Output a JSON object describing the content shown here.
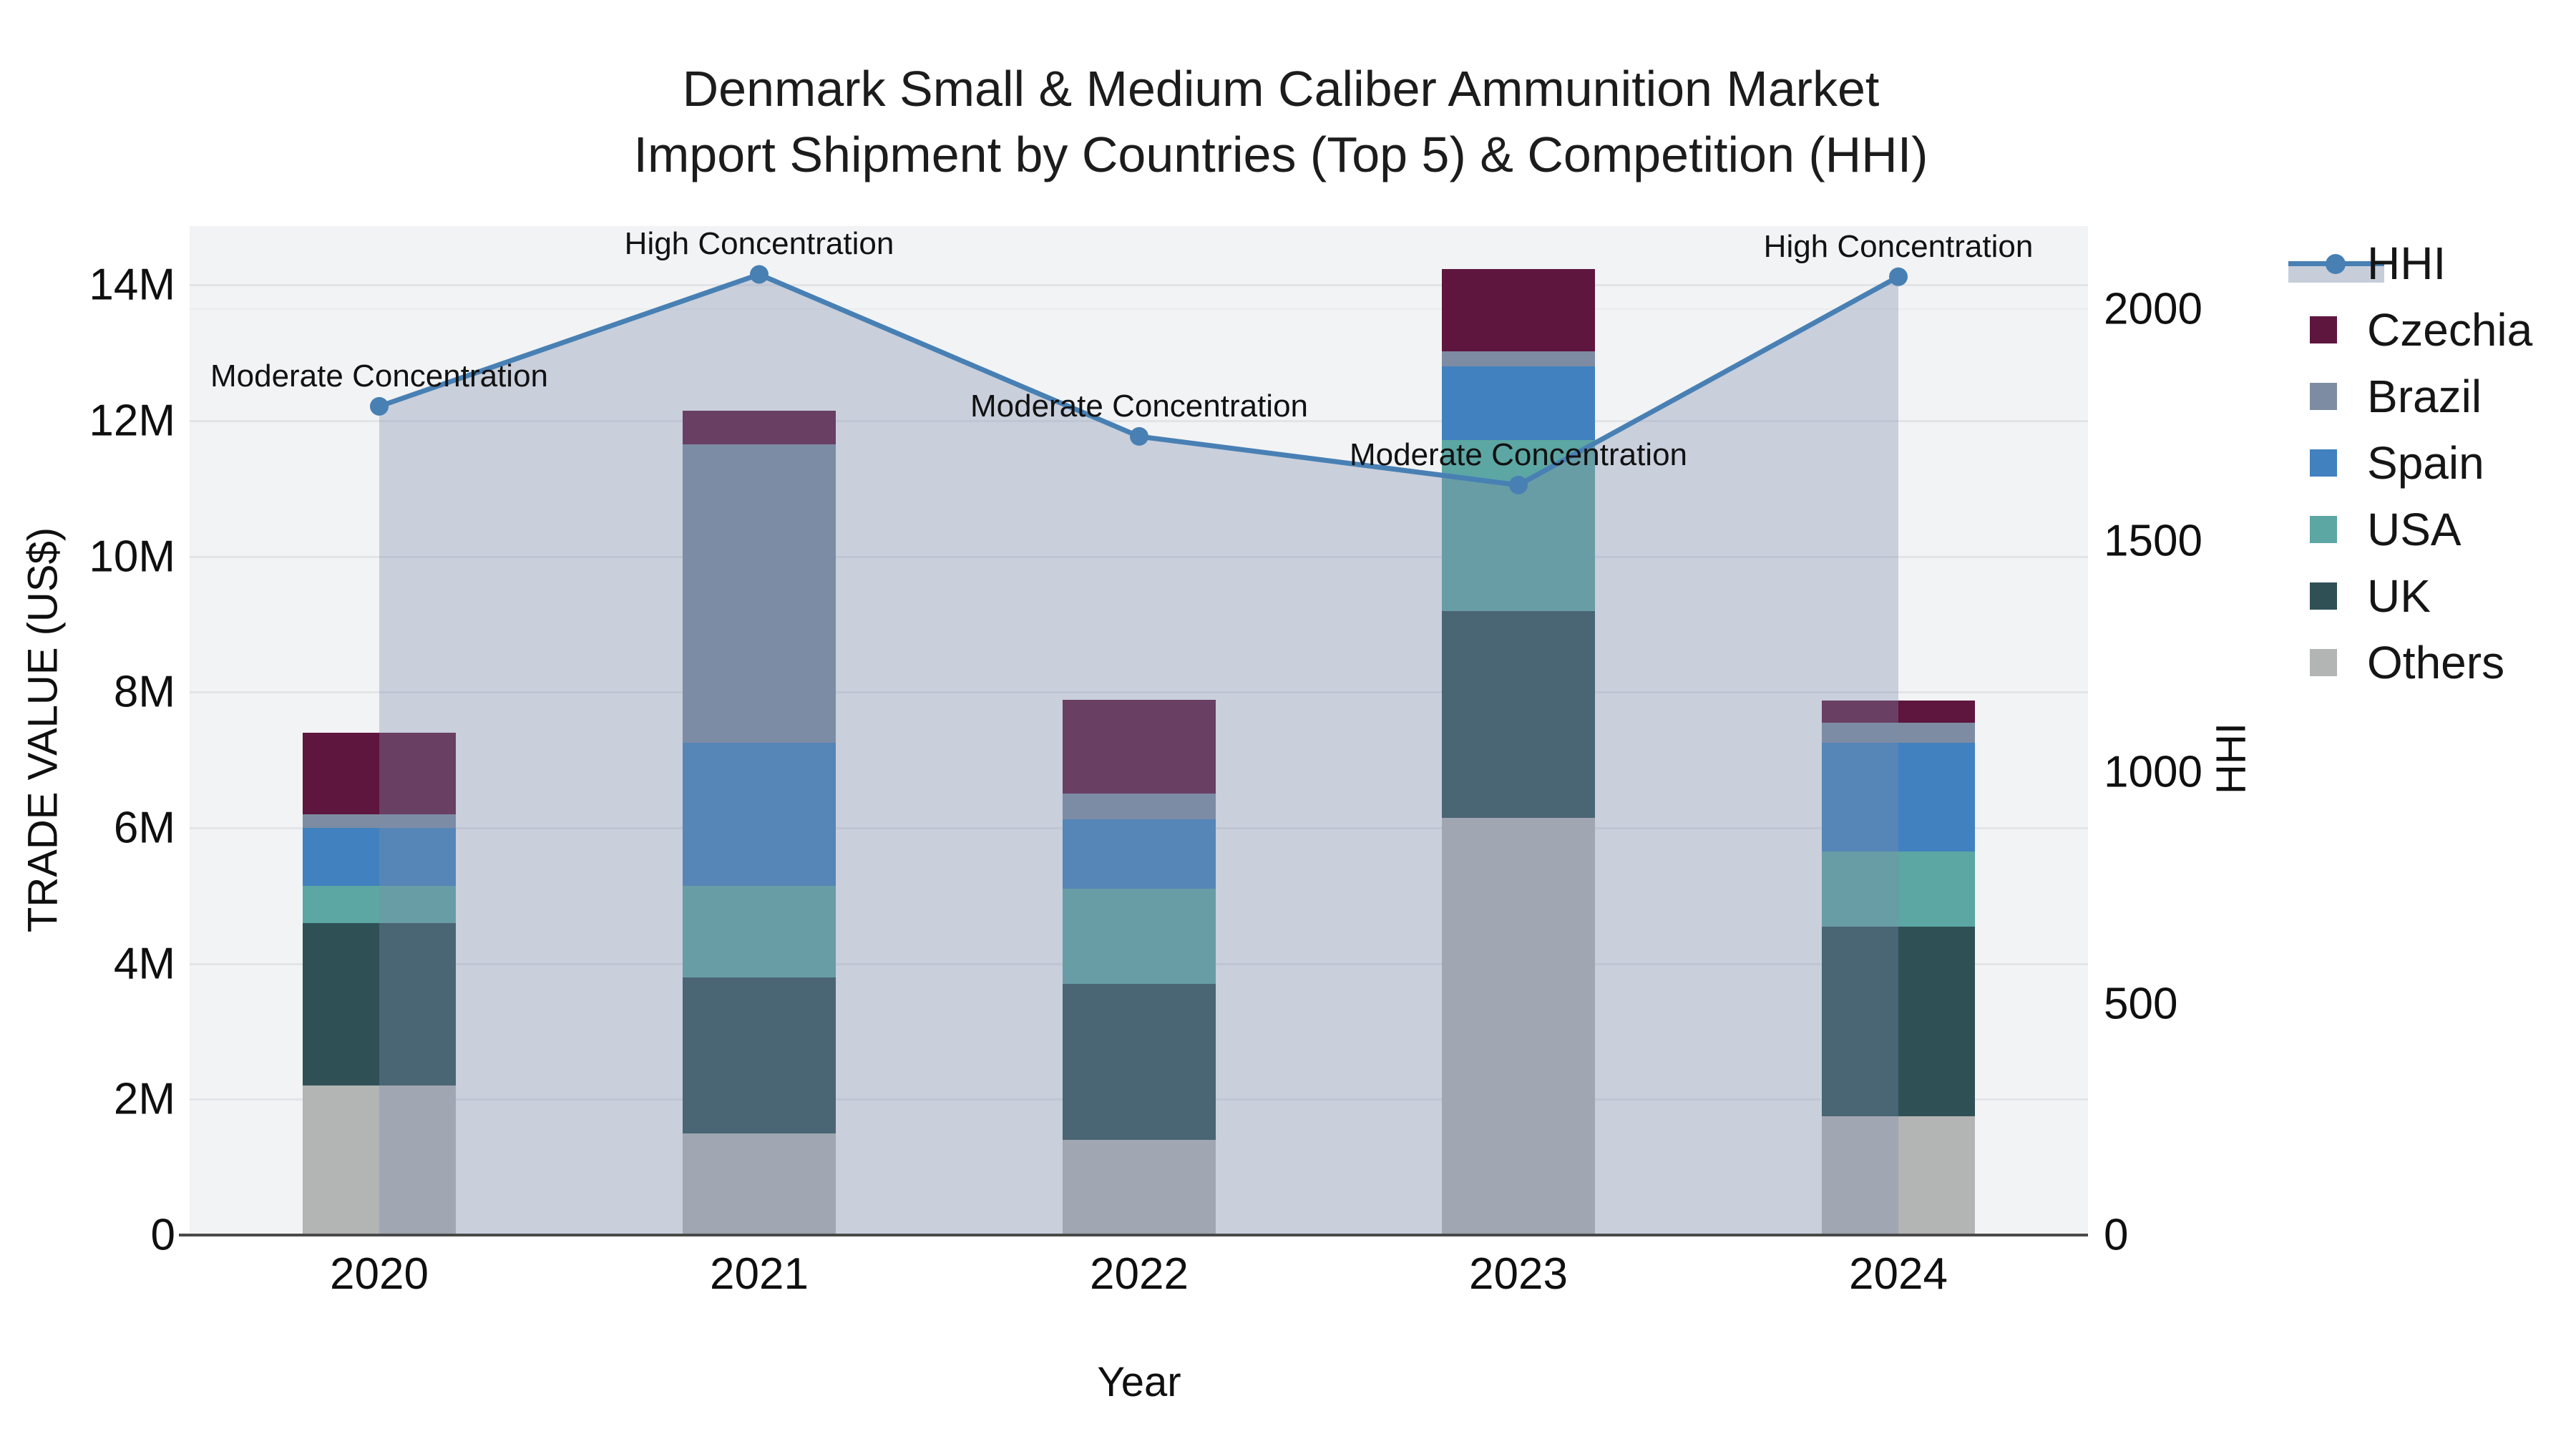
{
  "title": {
    "line1": "Denmark Small & Medium Caliber Ammunition Market",
    "line2": "Import Shipment by Countries (Top 5) & Competition (HHI)"
  },
  "axes": {
    "x": {
      "label": "Year",
      "categories": [
        "2020",
        "2021",
        "2022",
        "2023",
        "2024"
      ]
    },
    "y_left": {
      "label": "TRADE VALUE (US$)",
      "tick_labels": [
        "0",
        "2M",
        "4M",
        "6M",
        "8M",
        "10M",
        "12M",
        "14M"
      ],
      "tick_values_millions": [
        0,
        2,
        4,
        6,
        8,
        10,
        12,
        14
      ]
    },
    "y_right": {
      "label": "HHI",
      "tick_labels": [
        "0",
        "500",
        "1000",
        "1500",
        "2000"
      ],
      "tick_values": [
        0,
        500,
        1000,
        1500,
        2000
      ]
    }
  },
  "chart_data": {
    "type": "stacked-bar+line",
    "title": "Denmark Small & Medium Caliber Ammunition Market — Import Shipment by Countries (Top 5) & Competition (HHI)",
    "categories": [
      "2020",
      "2021",
      "2022",
      "2023",
      "2024"
    ],
    "bar_value_unit": "US$ millions",
    "bar_stack_order_bottom_to_top": [
      "Others",
      "UK",
      "USA",
      "Spain",
      "Brazil",
      "Czechia"
    ],
    "series": [
      {
        "name": "Others",
        "color": "#b3b5b5",
        "values": [
          2.2,
          1.5,
          1.4,
          6.15,
          1.75
        ]
      },
      {
        "name": "UK",
        "color": "#2f5156",
        "values": [
          2.4,
          2.3,
          2.3,
          3.05,
          2.8
        ]
      },
      {
        "name": "USA",
        "color": "#5ca6a3",
        "values": [
          0.55,
          1.35,
          1.4,
          2.52,
          1.1
        ]
      },
      {
        "name": "Spain",
        "color": "#4181bf",
        "values": [
          0.85,
          2.1,
          1.03,
          1.08,
          1.6
        ]
      },
      {
        "name": "Brazil",
        "color": "#7d8ca2",
        "values": [
          0.2,
          4.4,
          0.38,
          0.22,
          0.3
        ]
      },
      {
        "name": "Czechia",
        "color": "#5e163e",
        "values": [
          1.2,
          0.5,
          1.38,
          1.22,
          0.33
        ]
      }
    ],
    "bar_totals_millions": [
      7.4,
      12.15,
      7.89,
      14.24,
      7.88
    ],
    "line_series": {
      "name": "HHI",
      "color": "#4880b4",
      "area_fill_color": "rgba(125,139,171,0.35)",
      "values": [
        1790,
        2075,
        1725,
        1620,
        2070
      ]
    },
    "annotations": [
      {
        "x": "2020",
        "text": "Moderate Concentration"
      },
      {
        "x": "2021",
        "text": "High Concentration"
      },
      {
        "x": "2022",
        "text": "Moderate Concentration"
      },
      {
        "x": "2023",
        "text": "Moderate Concentration"
      },
      {
        "x": "2024",
        "text": "High Concentration"
      }
    ],
    "ylim_left_millions": [
      0,
      14.9
    ],
    "ylim_right": [
      0,
      2300
    ],
    "grid": true,
    "legend_position": "right"
  },
  "legend": {
    "items": [
      {
        "label": "HHI",
        "type": "line",
        "color": "#4880b4"
      },
      {
        "label": "Czechia",
        "type": "swatch",
        "color": "#5e163e"
      },
      {
        "label": "Brazil",
        "type": "swatch",
        "color": "#7d8ca2"
      },
      {
        "label": "Spain",
        "type": "swatch",
        "color": "#4181bf"
      },
      {
        "label": "USA",
        "type": "swatch",
        "color": "#5ca6a3"
      },
      {
        "label": "UK",
        "type": "swatch",
        "color": "#2f5156"
      },
      {
        "label": "Others",
        "type": "swatch",
        "color": "#b3b5b5"
      }
    ]
  }
}
